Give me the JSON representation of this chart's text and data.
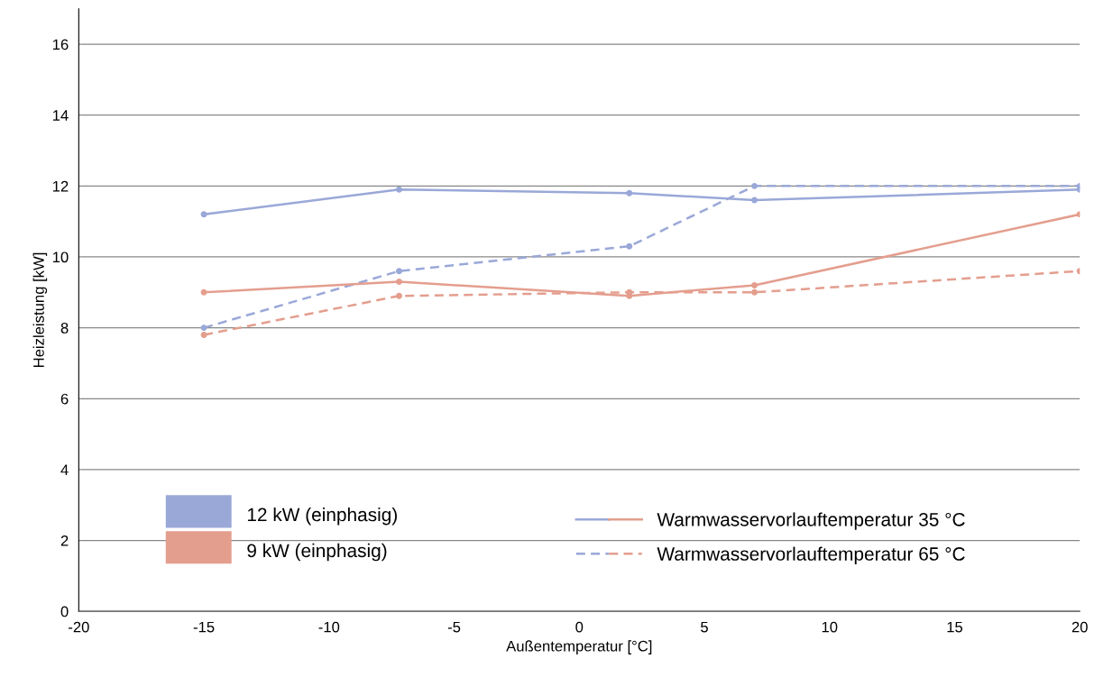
{
  "chart_data": {
    "type": "line",
    "xlabel": "Außentemperatur [°C]",
    "ylabel": "Heizleistung [kW]",
    "xlim": [
      -20,
      20
    ],
    "xticks": [
      -20,
      -15,
      -10,
      -5,
      0,
      5,
      10,
      15,
      20
    ],
    "ylim": [
      0,
      17
    ],
    "yticks": [
      0,
      2,
      4,
      6,
      8,
      10,
      12,
      14,
      16
    ],
    "grid": "y",
    "legend": "bottom",
    "marker": "circle",
    "annotations": [
      "Warmwasservorlauftemperatur 35 °C",
      "Warmwasservorlauftemperatur 65 °C"
    ],
    "series": [
      {
        "name": "12 kW (einphasig)",
        "color": "#9aa8d8",
        "line_style": "solid",
        "x": [
          -15,
          -7.2,
          2,
          7,
          20
        ],
        "values": [
          11.2,
          11.9,
          11.8,
          11.6,
          11.9
        ]
      },
      {
        "color": "#9aa8d8",
        "line_style": "dashed",
        "x": [
          -15,
          -7.2,
          2,
          7,
          20
        ],
        "values": [
          8.0,
          9.6,
          10.3,
          12.0,
          12.0
        ]
      },
      {
        "name": "9 kW (einphasig)",
        "color": "#e49e8e",
        "line_style": "solid",
        "x": [
          -15,
          -7.2,
          2,
          7,
          20
        ],
        "values": [
          9.0,
          9.3,
          8.9,
          9.2,
          11.2
        ]
      },
      {
        "color": "#e49e8e",
        "line_style": "dashed",
        "x": [
          -15,
          -7.2,
          2,
          7,
          20
        ],
        "values": [
          7.8,
          8.9,
          9.0,
          9.0,
          9.6
        ]
      }
    ]
  }
}
